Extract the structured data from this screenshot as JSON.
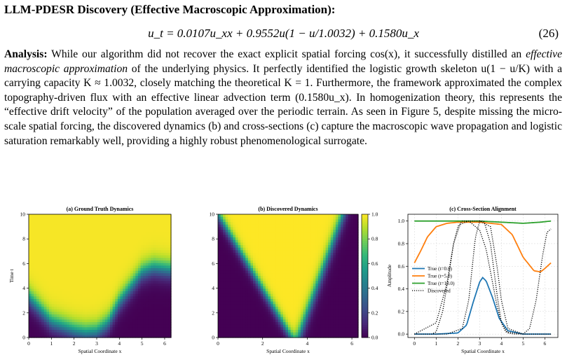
{
  "heading": "LLM-PDESR Discovery (Effective Macroscopic Approximation):",
  "equation": "u_t = 0.0107u_xx + 0.9552u(1 − u/1.0032) + 0.1580u_x",
  "equation_number": "(26)",
  "analysis": {
    "label": "Analysis:",
    "part1": " While our algorithm did not recover the exact explicit spatial forcing cos(x), it successfully distilled an ",
    "emph": "effective macroscopic approximation",
    "part2": " of the underlying physics. It perfectly identified the logistic growth skeleton u(1 − u/K) with a carrying capacity K ≈ 1.0032, closely matching the theoretical K = 1. Furthermore, the framework approximated the complex topography-driven flux with an effective linear advection term (0.1580u_x). In homogenization theory, this represents the “effective drift velocity” of the population averaged over the periodic terrain. As seen in Figure 5, despite missing the micro-scale spatial forcing, the discovered dynamics (b) and cross-sections (c) capture the macroscopic wave propagation and logistic saturation remarkably well, providing a highly robust phenomenological surrogate."
  },
  "chart_data": [
    {
      "type": "heatmap",
      "title": "(a) Ground Truth Dynamics",
      "xlabel": "Spatial Coordinate x",
      "ylabel": "Time t",
      "xlim": [
        0,
        6.28
      ],
      "ylim": [
        0,
        10
      ],
      "xticks": [
        "0",
        "1",
        "2",
        "3",
        "4",
        "5",
        "6"
      ],
      "yticks": [
        "0",
        "2",
        "4",
        "6",
        "8",
        "10"
      ],
      "colormap": "viridis",
      "front_time_profile": {
        "x": [
          0,
          1,
          2,
          2.5,
          3,
          3.5,
          4,
          5,
          5.5,
          6.28
        ],
        "t": [
          3.3,
          1.3,
          0.6,
          0.4,
          0.5,
          1.2,
          2.9,
          5.3,
          5.7,
          5.5
        ]
      }
    },
    {
      "type": "heatmap",
      "title": "(b) Discovered Dynamics",
      "xlabel": "Spatial Coordinate x",
      "xlim": [
        0,
        6.28
      ],
      "ylim": [
        0,
        10
      ],
      "xticks": [
        "0",
        "2",
        "4",
        "6"
      ],
      "yticks": [
        "0",
        "2",
        "4",
        "6",
        "8",
        "10"
      ],
      "colormap": "viridis",
      "colorbar_ticks": [
        "0.0",
        "0.2",
        "0.4",
        "0.6",
        "0.8",
        "1.0"
      ],
      "left_front": {
        "t": [
          0,
          10
        ],
        "x": [
          3.3,
          0.0
        ]
      },
      "right_front": {
        "t": [
          0,
          10
        ],
        "x": [
          3.6,
          5.6
        ]
      }
    },
    {
      "type": "line",
      "title": "(c) Cross-Section Alignment",
      "xlabel": "Spatial Coordinate x",
      "ylabel": "Amplitude",
      "xlim": [
        -0.3,
        6.6
      ],
      "ylim": [
        -0.03,
        1.06
      ],
      "xticks": [
        "0",
        "1",
        "2",
        "3",
        "4",
        "5",
        "6"
      ],
      "yticks": [
        "0.0",
        "0.2",
        "0.4",
        "0.6",
        "0.8",
        "1.0"
      ],
      "legend_position": "center-left",
      "series": [
        {
          "name": "True (t=0.0)",
          "color": "#1f77b4",
          "style": "solid",
          "x": [
            0,
            1,
            2,
            2.4,
            2.7,
            3.0,
            3.14,
            3.3,
            3.6,
            3.9,
            4.3,
            5,
            6.28
          ],
          "y": [
            0,
            0,
            0.01,
            0.08,
            0.28,
            0.46,
            0.5,
            0.47,
            0.32,
            0.14,
            0.03,
            0,
            0
          ]
        },
        {
          "name": "True (t=5.0)",
          "color": "#ff7f0e",
          "style": "solid",
          "x": [
            0,
            0.3,
            0.6,
            1.0,
            1.5,
            2,
            3,
            4,
            4.5,
            5.0,
            5.5,
            5.8,
            6.0,
            6.28
          ],
          "y": [
            0.63,
            0.74,
            0.86,
            0.95,
            0.98,
            0.99,
            0.99,
            0.97,
            0.88,
            0.68,
            0.56,
            0.55,
            0.58,
            0.63
          ]
        },
        {
          "name": "True (t=10.0)",
          "color": "#2ca02c",
          "style": "solid",
          "x": [
            0,
            1,
            2,
            3,
            4,
            5,
            5.8,
            6.28
          ],
          "y": [
            1.0,
            1.0,
            1.0,
            1.0,
            0.99,
            0.98,
            0.99,
            1.0
          ]
        },
        {
          "name": "Discovered",
          "color": "#000000",
          "style": "dotted",
          "x": [
            0,
            0.8,
            1.0,
            1.3,
            1.6,
            1.8,
            2.0,
            2.2,
            2.5,
            3.0,
            3.3,
            3.6,
            3.8,
            4.0,
            4.3,
            4.6,
            5.0,
            6.28
          ],
          "y": [
            0,
            0,
            0.02,
            0.2,
            0.55,
            0.8,
            0.95,
            1.0,
            1.0,
            0.92,
            0.75,
            0.45,
            0.25,
            0.1,
            0.01,
            0,
            0,
            0
          ]
        },
        {
          "name": "Discovered",
          "color": "#000000",
          "style": "dotted",
          "legend": false,
          "x": [
            0,
            1.5,
            2.2,
            2.5,
            2.8,
            3.0,
            3.2,
            3.5,
            3.8,
            4.0,
            4.2,
            5,
            6.28
          ],
          "y": [
            0,
            0,
            0.05,
            0.3,
            0.85,
            1.0,
            1.0,
            0.8,
            0.35,
            0.1,
            0.02,
            0,
            0
          ]
        },
        {
          "name": "Discovered",
          "color": "#000000",
          "style": "dotted",
          "legend": false,
          "x": [
            0,
            1.0,
            1.5,
            1.8,
            2.1,
            2.5,
            3.0,
            3.5,
            3.8,
            4.0,
            4.3,
            5.0,
            5.3,
            5.6,
            5.9,
            6.1,
            6.28
          ],
          "y": [
            0,
            0.1,
            0.45,
            0.8,
            0.97,
            1.0,
            1.0,
            0.95,
            0.6,
            0.3,
            0.05,
            0,
            0.05,
            0.3,
            0.7,
            0.9,
            0.93
          ]
        }
      ]
    }
  ]
}
